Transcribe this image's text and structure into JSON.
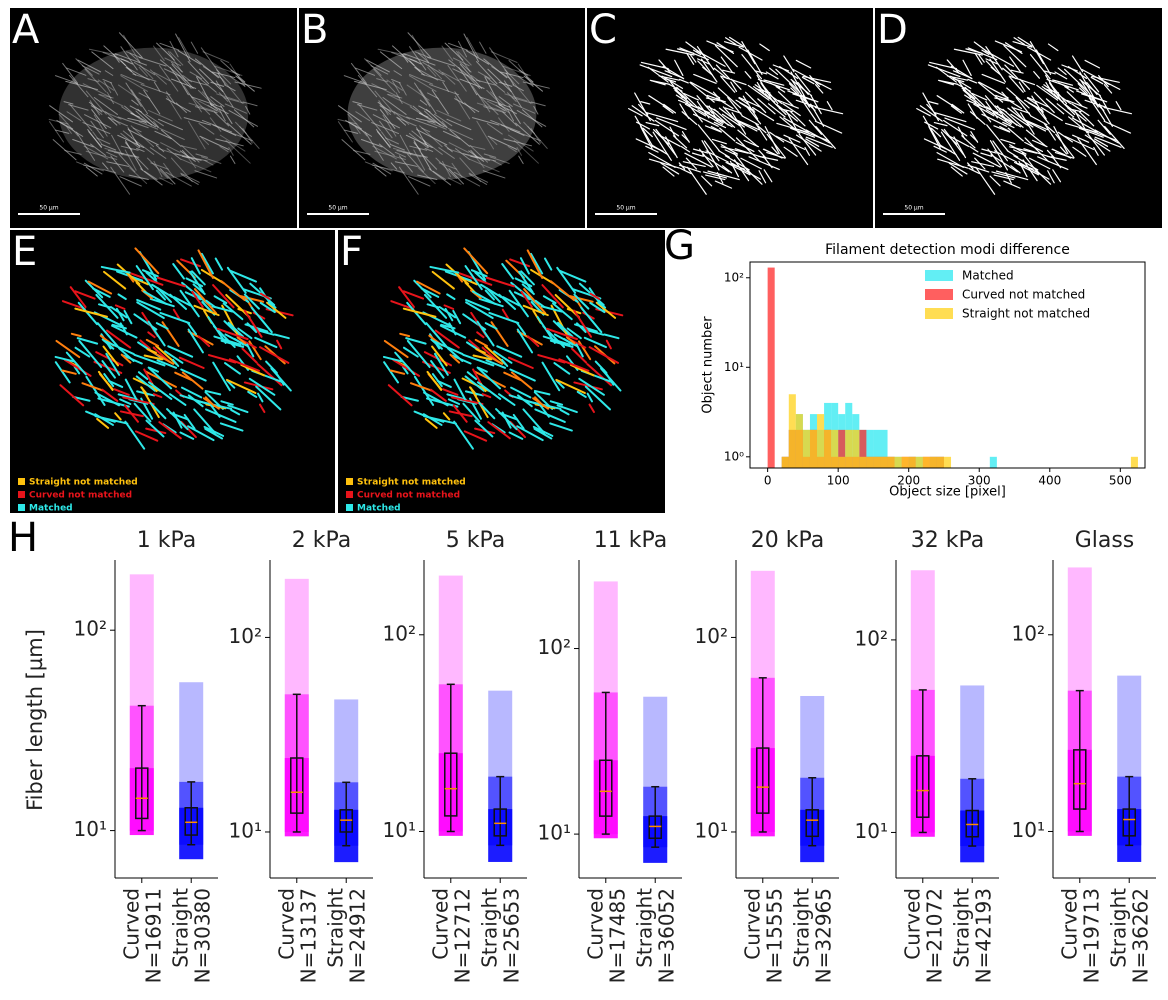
{
  "image_panels": [
    {
      "letter": "A",
      "scale_bar": "50 µm"
    },
    {
      "letter": "B",
      "scale_bar": "50 µm"
    },
    {
      "letter": "C",
      "scale_bar": "50 µm"
    },
    {
      "letter": "D",
      "scale_bar": "50 µm"
    },
    {
      "letter": "E",
      "legend": [
        {
          "name": "Straight not matched",
          "color": "#ffc20e"
        },
        {
          "name": "Curved not matched",
          "color": "#e8141b"
        },
        {
          "name": "Matched",
          "color": "#2ee8e8"
        }
      ]
    },
    {
      "letter": "F",
      "legend": [
        {
          "name": "Straight not matched",
          "color": "#ffc20e"
        },
        {
          "name": "Curved not matched",
          "color": "#e8141b"
        },
        {
          "name": "Matched",
          "color": "#2ee8e8"
        }
      ]
    }
  ],
  "chart_data": [
    {
      "type": "histogram",
      "panel_label": "G",
      "title": "Filament detection modi difference",
      "xlabel": "Object size [pixel]",
      "ylabel": "Object number",
      "xlim": [
        -25,
        535
      ],
      "ylim": [
        0.75,
        150
      ],
      "log_y": true,
      "legend": "upper right",
      "xticks": [
        0,
        100,
        200,
        300,
        400,
        500
      ],
      "yticks": [
        {
          "value": 1,
          "label": "10⁰"
        },
        {
          "value": 10,
          "label": "10¹"
        },
        {
          "value": 100,
          "label": "10²"
        }
      ],
      "series": [
        {
          "name": "Matched",
          "color": "#2ee8f0",
          "bins": [
            20,
            30,
            40,
            50,
            60,
            70,
            80,
            90,
            100,
            110,
            120,
            130,
            140,
            150,
            160,
            170,
            180,
            190,
            200,
            210,
            220,
            230,
            240,
            250,
            315,
            325
          ],
          "values": [
            1,
            2,
            3,
            2,
            3,
            2,
            4,
            4,
            3,
            4,
            3,
            2,
            2,
            2,
            2,
            1,
            1,
            0,
            1,
            1,
            0,
            1,
            1,
            0,
            1
          ]
        },
        {
          "name": "Curved not matched",
          "color": "#ff2a2a",
          "bins": [
            0,
            10,
            20,
            30,
            40,
            50,
            60,
            70,
            80,
            90,
            100,
            110,
            120,
            130,
            140,
            150,
            160,
            170,
            180,
            190,
            200,
            210,
            220,
            230,
            240,
            250
          ],
          "values": [
            130,
            0,
            1,
            2,
            2,
            1,
            2,
            1,
            2,
            1,
            2,
            1,
            1,
            2,
            1,
            1,
            1,
            1,
            0,
            1,
            1,
            0,
            1,
            1,
            1
          ]
        },
        {
          "name": "Straight not matched",
          "color": "#ffd21a",
          "bins": [
            20,
            30,
            40,
            50,
            60,
            70,
            80,
            90,
            100,
            110,
            120,
            130,
            140,
            150,
            160,
            170,
            180,
            190,
            200,
            210,
            220,
            230,
            240,
            250,
            260,
            515,
            525
          ],
          "values": [
            1,
            5,
            3,
            2,
            2,
            3,
            2,
            2,
            1,
            2,
            2,
            1,
            1,
            1,
            1,
            1,
            1,
            1,
            1,
            1,
            1,
            1,
            1,
            1,
            0,
            1
          ]
        }
      ]
    },
    {
      "type": "box",
      "panel_label": "H",
      "title": "1 kPa",
      "ylabel": "Fiber length [µm]",
      "log_y": true,
      "ylim": [
        5.8,
        224
      ],
      "yticks": [
        {
          "value": 10,
          "label": "10¹"
        },
        {
          "value": 100,
          "label": "10²"
        }
      ],
      "median_color": "#ff8c00",
      "series": [
        {
          "name": "Curved",
          "n_label": "N=16911",
          "color": "#ff00ff",
          "box": {
            "min": 9.5,
            "whislo": 10,
            "q1": 11.5,
            "med": 14.5,
            "q3": 20.5,
            "whishi": 42,
            "max": 190
          }
        },
        {
          "name": "Straight",
          "n_label": "N=30380",
          "color": "#0000ff",
          "box": {
            "min": 7.2,
            "whislo": 8.5,
            "q1": 9.5,
            "med": 11,
            "q3": 13,
            "whishi": 17.5,
            "max": 55
          }
        }
      ]
    },
    {
      "type": "box",
      "title": "2 kPa",
      "log_y": true,
      "ylim": [
        5.8,
        250
      ],
      "yticks": [
        {
          "value": 10,
          "label": "10¹"
        },
        {
          "value": 100,
          "label": "10²"
        }
      ],
      "median_color": "#ff8c00",
      "series": [
        {
          "name": "Curved",
          "n_label": "N=13137",
          "color": "#ff00ff",
          "box": {
            "min": 9.5,
            "whislo": 10,
            "q1": 12.5,
            "med": 16,
            "q3": 24,
            "whishi": 51,
            "max": 200
          }
        },
        {
          "name": "Straight",
          "n_label": "N=24912",
          "color": "#0000ff",
          "box": {
            "min": 7,
            "whislo": 8.5,
            "q1": 10,
            "med": 11.5,
            "q3": 13,
            "whishi": 18,
            "max": 48
          }
        }
      ]
    },
    {
      "type": "box",
      "title": "5 kPa",
      "log_y": true,
      "ylim": [
        5.8,
        240
      ],
      "yticks": [
        {
          "value": 10,
          "label": "10¹"
        },
        {
          "value": 100,
          "label": "10²"
        }
      ],
      "median_color": "#ff8c00",
      "series": [
        {
          "name": "Curved",
          "n_label": "N=12712",
          "color": "#ff00ff",
          "box": {
            "min": 9.5,
            "whislo": 10,
            "q1": 12,
            "med": 16.5,
            "q3": 25,
            "whishi": 56,
            "max": 200
          }
        },
        {
          "name": "Straight",
          "n_label": "N=25653",
          "color": "#0000ff",
          "box": {
            "min": 7,
            "whislo": 8.5,
            "q1": 9.5,
            "med": 11,
            "q3": 13,
            "whishi": 19,
            "max": 52
          }
        }
      ]
    },
    {
      "type": "box",
      "title": "11 kPa",
      "log_y": true,
      "ylim": [
        5.8,
        300
      ],
      "yticks": [
        {
          "value": 10,
          "label": "10¹"
        },
        {
          "value": 100,
          "label": "10²"
        }
      ],
      "median_color": "#ff8c00",
      "series": [
        {
          "name": "Curved",
          "n_label": "N=17485",
          "color": "#ff00ff",
          "box": {
            "min": 9.5,
            "whislo": 10,
            "q1": 12.5,
            "med": 17,
            "q3": 25,
            "whishi": 58,
            "max": 230
          }
        },
        {
          "name": "Straight",
          "n_label": "N=36052",
          "color": "#0000ff",
          "box": {
            "min": 7,
            "whislo": 8.5,
            "q1": 9.5,
            "med": 11,
            "q3": 12.5,
            "whishi": 18,
            "max": 55
          }
        }
      ]
    },
    {
      "type": "box",
      "title": "20 kPa",
      "log_y": true,
      "ylim": [
        5.8,
        250
      ],
      "yticks": [
        {
          "value": 10,
          "label": "10¹"
        },
        {
          "value": 100,
          "label": "10²"
        }
      ],
      "median_color": "#ff8c00",
      "series": [
        {
          "name": "Curved",
          "n_label": "N=15555",
          "color": "#ff00ff",
          "box": {
            "min": 9.5,
            "whislo": 10,
            "q1": 12.5,
            "med": 17,
            "q3": 27,
            "whishi": 62,
            "max": 220
          }
        },
        {
          "name": "Straight",
          "n_label": "N=32965",
          "color": "#0000ff",
          "box": {
            "min": 7,
            "whislo": 8.5,
            "q1": 9.5,
            "med": 11.5,
            "q3": 13,
            "whishi": 19,
            "max": 50
          }
        }
      ]
    },
    {
      "type": "box",
      "title": "32 kPa",
      "log_y": true,
      "ylim": [
        5.8,
        260
      ],
      "yticks": [
        {
          "value": 10,
          "label": "10¹"
        },
        {
          "value": 100,
          "label": "10²"
        }
      ],
      "median_color": "#ff8c00",
      "series": [
        {
          "name": "Curved",
          "n_label": "N=21072",
          "color": "#ff00ff",
          "box": {
            "min": 9.5,
            "whislo": 10,
            "q1": 12,
            "med": 16.5,
            "q3": 25,
            "whishi": 55,
            "max": 230
          }
        },
        {
          "name": "Straight",
          "n_label": "N=42193",
          "color": "#0000ff",
          "box": {
            "min": 7,
            "whislo": 8.5,
            "q1": 9.5,
            "med": 11,
            "q3": 13,
            "whishi": 19,
            "max": 58
          }
        }
      ]
    },
    {
      "type": "box",
      "title": "Glass",
      "log_y": true,
      "ylim": [
        5.8,
        240
      ],
      "yticks": [
        {
          "value": 10,
          "label": "10¹"
        },
        {
          "value": 100,
          "label": "10²"
        }
      ],
      "median_color": "#ff8c00",
      "series": [
        {
          "name": "Curved",
          "n_label": "N=19713",
          "color": "#ff00ff",
          "box": {
            "min": 9.5,
            "whislo": 10,
            "q1": 13,
            "med": 17.5,
            "q3": 26,
            "whishi": 52,
            "max": 220
          }
        },
        {
          "name": "Straight",
          "n_label": "N=36262",
          "color": "#0000ff",
          "box": {
            "min": 7,
            "whislo": 8.5,
            "q1": 9.5,
            "med": 11.5,
            "q3": 13,
            "whishi": 19,
            "max": 62
          }
        }
      ]
    }
  ]
}
